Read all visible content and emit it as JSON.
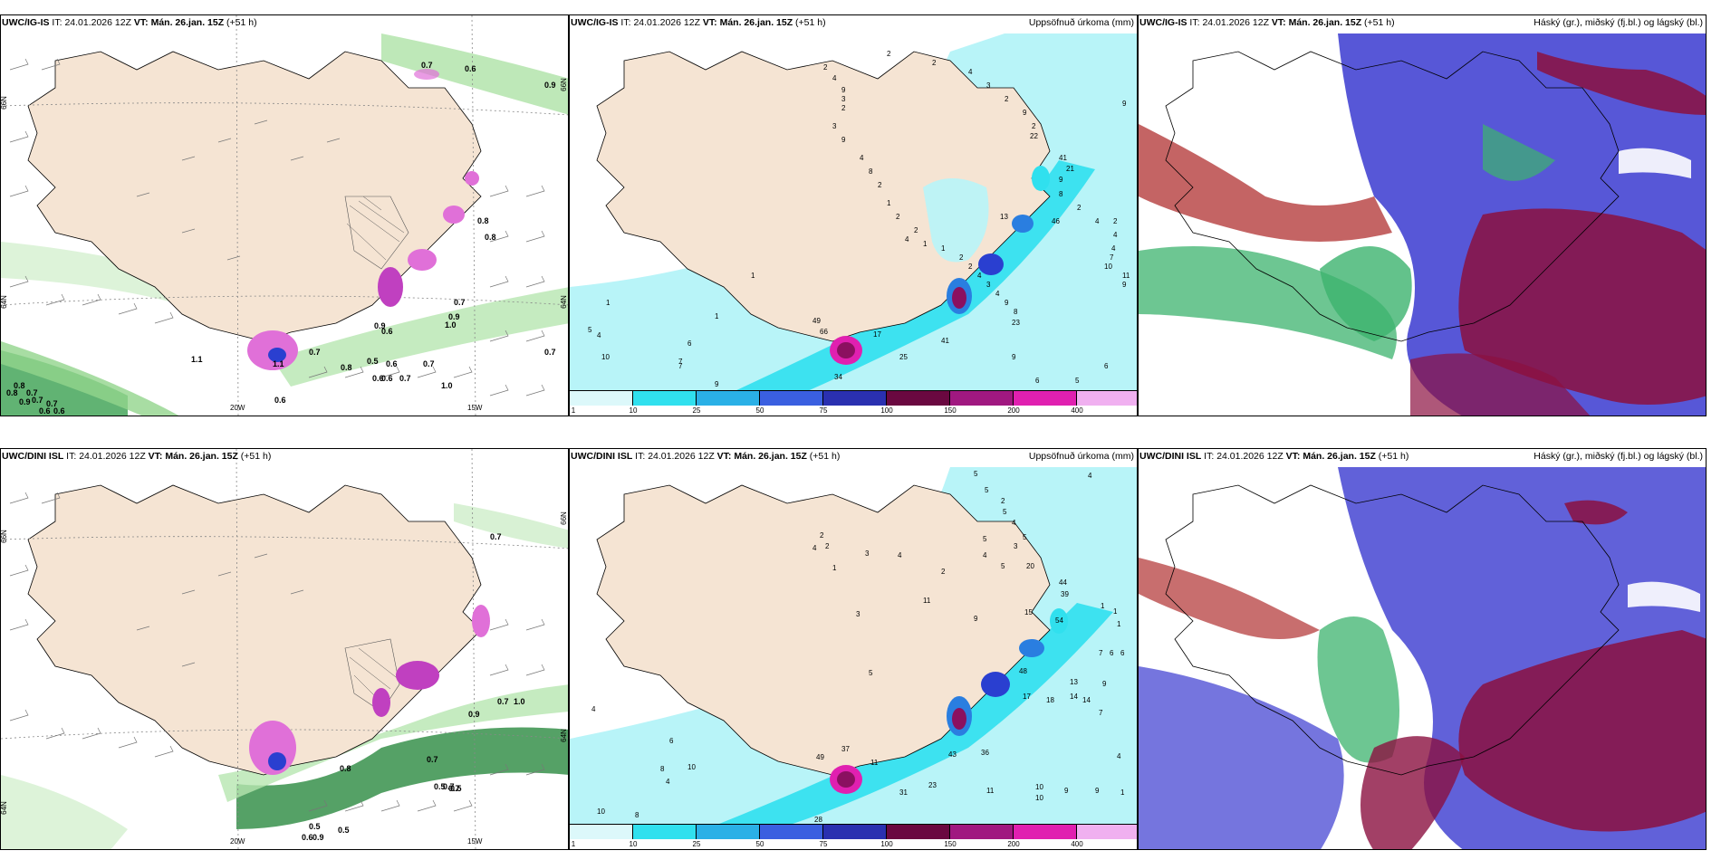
{
  "colors": {
    "land": "#f5e4d3",
    "sea": "#ffffff",
    "precip_light": "#b8f4f8",
    "precip_mid": "#30e0ee",
    "precip_blue": "#2a7ee0",
    "precip_dark": "#2a3fd0",
    "precip_purple": "#8b1060",
    "precip_magenta": "#e020b0",
    "cloud_high": "#3cb36e",
    "cloud_mid": "#3a3ad0",
    "cloud_low": "#b03030"
  },
  "rows": [
    {
      "model": "UWC/IG-IS",
      "it_label": "IT:",
      "it_value": "24.01.2026 12Z",
      "vt_label": "VT:",
      "vt_value": "Mán. 26.jan. 15Z",
      "lead": "(+51 h)",
      "wind_values": [
        "0.8",
        "0.7",
        "0.9",
        "0.6",
        "0.6",
        "0.8",
        "0.7",
        "0.7",
        "0.9",
        "0.7",
        "0.9",
        "1.0",
        "1.1",
        "1.1",
        "0.7",
        "0.8",
        "0.5",
        "0.6",
        "0.7",
        "0.6",
        "0.6",
        "0.7",
        "1.0",
        "0.6",
        "0.7",
        "0.6",
        "0.9",
        "0.8",
        "0.8",
        "0.7",
        "0.6"
      ],
      "precip_values": [
        "2",
        "4",
        "9",
        "3",
        "2",
        "3",
        "9",
        "4",
        "8",
        "2",
        "1",
        "2",
        "2",
        "1",
        "1",
        "2",
        "2",
        "4",
        "3",
        "4",
        "9",
        "8",
        "2",
        "2",
        "4",
        "3",
        "2",
        "9",
        "2",
        "13",
        "4",
        "8",
        "2",
        "4",
        "1",
        "5",
        "1",
        "4",
        "10",
        "6",
        "7",
        "1",
        "7",
        "9",
        "49",
        "66",
        "17",
        "41",
        "23",
        "9",
        "25",
        "34",
        "6",
        "5",
        "4",
        "10",
        "11",
        "9",
        "7",
        "4",
        "2",
        "9",
        "6",
        "22",
        "41",
        "21",
        "9",
        "46"
      ],
      "lon_labels": [
        "20W",
        "15W"
      ],
      "lat_labels": [
        "66N",
        "64N"
      ]
    },
    {
      "model": "UWC/DINI ISL",
      "it_label": "IT:",
      "it_value": "24.01.2026 12Z",
      "vt_label": "VT:",
      "vt_value": "Mán. 26.jan. 15Z",
      "lead": "(+51 h)",
      "wind_values": [
        "0.7",
        "0.7",
        "1.0",
        "0.9",
        "0.8",
        "0.7",
        "0.5",
        "0.5",
        "0.7",
        "0.7",
        "0.5",
        "0.5",
        "0.6",
        "0.9"
      ],
      "precip_values": [
        "5",
        "4",
        "5",
        "2",
        "5",
        "4",
        "5",
        "3",
        "5",
        "4",
        "5",
        "20",
        "44",
        "39",
        "54",
        "1",
        "1",
        "7",
        "6",
        "6",
        "13",
        "14",
        "9",
        "14",
        "18",
        "17",
        "15",
        "48",
        "9",
        "1",
        "4",
        "3",
        "2",
        "2",
        "11",
        "2",
        "3",
        "4",
        "1",
        "5",
        "4",
        "6",
        "8",
        "10",
        "49",
        "37",
        "11",
        "23",
        "31",
        "28",
        "43",
        "36",
        "11",
        "10",
        "10",
        "9",
        "9",
        "7",
        "4",
        "1",
        "4",
        "10",
        "8"
      ],
      "lon_labels": [
        "20W",
        "15W"
      ],
      "lat_labels": [
        "66N",
        "64N"
      ]
    }
  ],
  "precip_panel": {
    "title": "Uppsöfnuð úrkoma (mm)",
    "colorbar_ticks": [
      "1",
      "10",
      "25",
      "50",
      "75",
      "100",
      "150",
      "200",
      "400"
    ]
  },
  "cloud_panel": {
    "title": "Háský (gr.), miðský (fj.bl.) og lágský (bl.)"
  }
}
